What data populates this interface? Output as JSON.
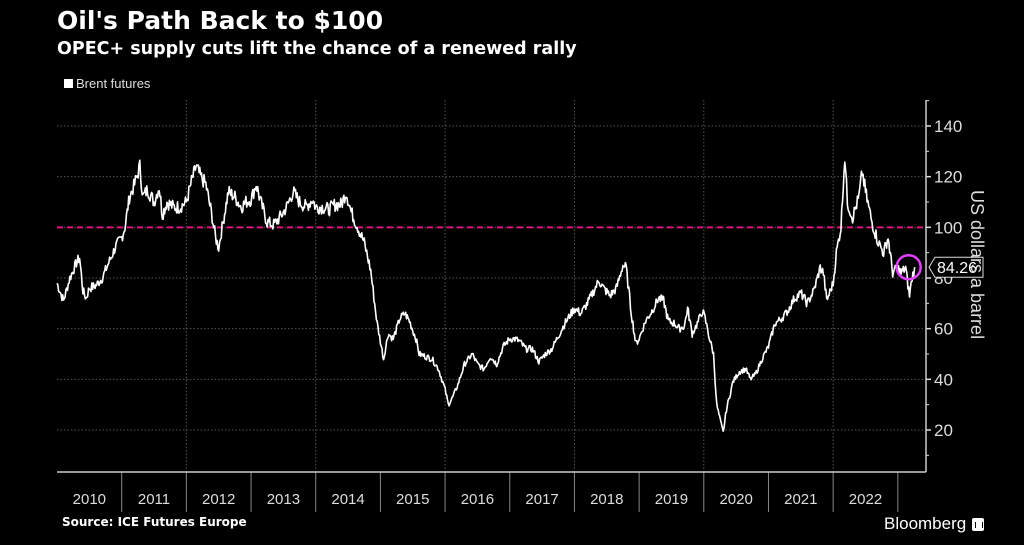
{
  "title": "Oil's Path Back to $100",
  "subtitle": "OPEC+ supply cuts lift the chance of a renewed rally",
  "legend": {
    "label": "Brent futures",
    "color": "#ffffff"
  },
  "source": "Source: ICE Futures Europe",
  "brand": "Bloomberg",
  "chart_data": {
    "type": "line",
    "title": "Oil's Path Back to $100",
    "subtitle": "OPEC+ supply cuts lift the chance of a renewed rally",
    "xlabel": "",
    "ylabel": "US dollars a barrel",
    "ylim": [
      5,
      150
    ],
    "xlim": [
      2010,
      2023.25
    ],
    "y_axis_side": "right",
    "yticks": [
      20,
      40,
      60,
      80,
      100,
      120,
      140
    ],
    "xticks": [
      "2010",
      "2011",
      "2012",
      "2013",
      "2014",
      "2015",
      "2016",
      "2017",
      "2018",
      "2019",
      "2020",
      "2021",
      "2022"
    ],
    "grid": true,
    "legend_position": "top-left",
    "reference_line": {
      "value": 100,
      "style": "dashed",
      "color": "#e0107f"
    },
    "last_value_label": "84.26",
    "highlight": {
      "value": 84.26,
      "color": "#e040fb",
      "shape": "circle",
      "position": "end"
    },
    "series": [
      {
        "name": "Brent futures",
        "color": "#ffffff",
        "points": [
          [
            2010.0,
            78
          ],
          [
            2010.1,
            71
          ],
          [
            2010.2,
            80
          ],
          [
            2010.3,
            86
          ],
          [
            2010.35,
            88
          ],
          [
            2010.4,
            75
          ],
          [
            2010.45,
            72
          ],
          [
            2010.5,
            76
          ],
          [
            2010.6,
            77
          ],
          [
            2010.7,
            80
          ],
          [
            2010.8,
            86
          ],
          [
            2010.9,
            92
          ],
          [
            2011.0,
            96
          ],
          [
            2011.05,
            100
          ],
          [
            2011.12,
            112
          ],
          [
            2011.2,
            117
          ],
          [
            2011.28,
            124
          ],
          [
            2011.33,
            112
          ],
          [
            2011.4,
            115
          ],
          [
            2011.5,
            110
          ],
          [
            2011.58,
            116
          ],
          [
            2011.63,
            105
          ],
          [
            2011.7,
            110
          ],
          [
            2011.8,
            108
          ],
          [
            2011.9,
            108
          ],
          [
            2012.0,
            110
          ],
          [
            2012.08,
            118
          ],
          [
            2012.15,
            124
          ],
          [
            2012.22,
            120
          ],
          [
            2012.3,
            117
          ],
          [
            2012.4,
            104
          ],
          [
            2012.45,
            96
          ],
          [
            2012.5,
            92
          ],
          [
            2012.58,
            104
          ],
          [
            2012.65,
            114
          ],
          [
            2012.75,
            112
          ],
          [
            2012.85,
            108
          ],
          [
            2012.92,
            110
          ],
          [
            2013.0,
            111
          ],
          [
            2013.08,
            117
          ],
          [
            2013.15,
            110
          ],
          [
            2013.25,
            102
          ],
          [
            2013.35,
            101
          ],
          [
            2013.45,
            104
          ],
          [
            2013.55,
            108
          ],
          [
            2013.65,
            114
          ],
          [
            2013.75,
            110
          ],
          [
            2013.85,
            108
          ],
          [
            2013.95,
            111
          ],
          [
            2014.0,
            108
          ],
          [
            2014.1,
            108
          ],
          [
            2014.2,
            107
          ],
          [
            2014.3,
            109
          ],
          [
            2014.4,
            109
          ],
          [
            2014.47,
            114
          ],
          [
            2014.55,
            106
          ],
          [
            2014.65,
            100
          ],
          [
            2014.75,
            94
          ],
          [
            2014.85,
            83
          ],
          [
            2014.95,
            62
          ],
          [
            2015.0,
            55
          ],
          [
            2015.05,
            48
          ],
          [
            2015.12,
            58
          ],
          [
            2015.2,
            56
          ],
          [
            2015.3,
            64
          ],
          [
            2015.38,
            66
          ],
          [
            2015.45,
            63
          ],
          [
            2015.55,
            56
          ],
          [
            2015.6,
            50
          ],
          [
            2015.7,
            49
          ],
          [
            2015.8,
            48
          ],
          [
            2015.9,
            44
          ],
          [
            2016.0,
            36
          ],
          [
            2016.05,
            30
          ],
          [
            2016.12,
            33
          ],
          [
            2016.2,
            38
          ],
          [
            2016.3,
            46
          ],
          [
            2016.42,
            50
          ],
          [
            2016.5,
            46
          ],
          [
            2016.6,
            44
          ],
          [
            2016.7,
            49
          ],
          [
            2016.8,
            46
          ],
          [
            2016.9,
            53
          ],
          [
            2017.0,
            56
          ],
          [
            2017.08,
            56
          ],
          [
            2017.15,
            55
          ],
          [
            2017.25,
            52
          ],
          [
            2017.35,
            52
          ],
          [
            2017.45,
            47
          ],
          [
            2017.55,
            50
          ],
          [
            2017.65,
            52
          ],
          [
            2017.75,
            57
          ],
          [
            2017.85,
            62
          ],
          [
            2017.95,
            66
          ],
          [
            2018.0,
            68
          ],
          [
            2018.1,
            66
          ],
          [
            2018.2,
            70
          ],
          [
            2018.3,
            75
          ],
          [
            2018.38,
            79
          ],
          [
            2018.45,
            76
          ],
          [
            2018.55,
            73
          ],
          [
            2018.65,
            76
          ],
          [
            2018.75,
            85
          ],
          [
            2018.8,
            84
          ],
          [
            2018.88,
            66
          ],
          [
            2018.95,
            54
          ],
          [
            2019.0,
            56
          ],
          [
            2019.1,
            63
          ],
          [
            2019.2,
            67
          ],
          [
            2019.3,
            72
          ],
          [
            2019.38,
            71
          ],
          [
            2019.45,
            63
          ],
          [
            2019.55,
            62
          ],
          [
            2019.62,
            60
          ],
          [
            2019.7,
            61
          ],
          [
            2019.75,
            68
          ],
          [
            2019.82,
            58
          ],
          [
            2019.9,
            62
          ],
          [
            2019.98,
            67
          ],
          [
            2020.02,
            64
          ],
          [
            2020.1,
            55
          ],
          [
            2020.15,
            50
          ],
          [
            2020.2,
            30
          ],
          [
            2020.27,
            22
          ],
          [
            2020.3,
            19
          ],
          [
            2020.35,
            28
          ],
          [
            2020.45,
            39
          ],
          [
            2020.55,
            43
          ],
          [
            2020.65,
            44
          ],
          [
            2020.72,
            40
          ],
          [
            2020.8,
            42
          ],
          [
            2020.9,
            48
          ],
          [
            2021.0,
            53
          ],
          [
            2021.1,
            62
          ],
          [
            2021.2,
            64
          ],
          [
            2021.3,
            67
          ],
          [
            2021.4,
            72
          ],
          [
            2021.5,
            74
          ],
          [
            2021.6,
            70
          ],
          [
            2021.7,
            75
          ],
          [
            2021.8,
            84
          ],
          [
            2021.85,
            82
          ],
          [
            2021.9,
            71
          ],
          [
            2022.0,
            78
          ],
          [
            2022.05,
            90
          ],
          [
            2022.12,
            100
          ],
          [
            2022.18,
            128
          ],
          [
            2022.22,
            110
          ],
          [
            2022.3,
            104
          ],
          [
            2022.4,
            112
          ],
          [
            2022.45,
            122
          ],
          [
            2022.5,
            114
          ],
          [
            2022.6,
            102
          ],
          [
            2022.7,
            94
          ],
          [
            2022.78,
            90
          ],
          [
            2022.85,
            96
          ],
          [
            2022.92,
            82
          ],
          [
            2023.0,
            84
          ],
          [
            2023.05,
            82
          ],
          [
            2023.12,
            84
          ],
          [
            2023.18,
            73
          ],
          [
            2023.22,
            80
          ],
          [
            2023.26,
            84.26
          ]
        ]
      }
    ]
  }
}
